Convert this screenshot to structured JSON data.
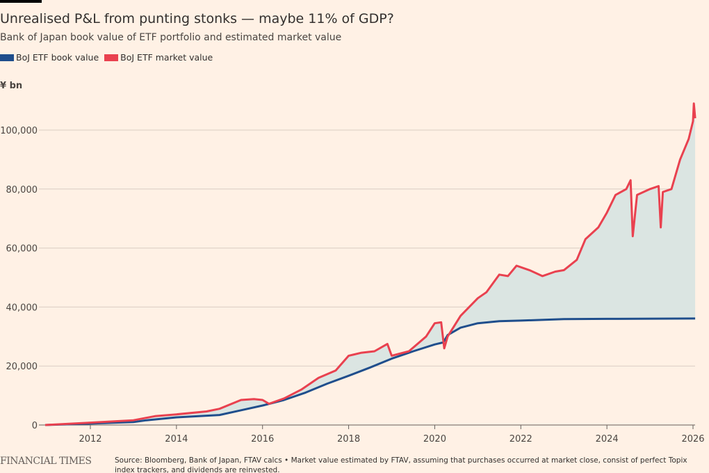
{
  "chart_data": {
    "type": "area",
    "title": "Unrealised P&L from punting stonks — maybe 11% of GDP?",
    "subtitle": "Bank of Japan book value of ETF portfolio and estimated market value",
    "ylabel": "¥ bn",
    "ylim": [
      0,
      110000
    ],
    "xlim": [
      2010.95,
      2026.1
    ],
    "yticks": [
      0,
      20000,
      40000,
      60000,
      80000,
      100000
    ],
    "ytick_labels": [
      "0",
      "20,000",
      "40,000",
      "60,000",
      "80,000",
      "100,000"
    ],
    "xticks": [
      2012,
      2014,
      2016,
      2018,
      2020,
      2022,
      2024,
      2026
    ],
    "xtick_labels": [
      "2012",
      "2014",
      "2016",
      "2018",
      "2020",
      "2022",
      "2024",
      "2026"
    ],
    "grid": true,
    "legend_placement": "top-left",
    "series": [
      {
        "name": "BoJ ETF book value",
        "color": "#1f4e8c",
        "x": [
          2010.95,
          2012,
          2013,
          2013.3,
          2014,
          2015,
          2015.5,
          2016,
          2016.5,
          2017,
          2017.5,
          2018,
          2018.5,
          2019,
          2019.5,
          2020,
          2020.2,
          2020.3,
          2020.6,
          2021,
          2021.5,
          2022,
          2023,
          2024,
          2026.05
        ],
        "values": [
          0,
          500,
          1000,
          1600,
          2600,
          3400,
          5000,
          6600,
          8500,
          11000,
          14000,
          16700,
          19500,
          22500,
          25000,
          27300,
          28000,
          30500,
          33000,
          34500,
          35200,
          35400,
          35900,
          36000,
          36100
        ]
      },
      {
        "name": "BoJ ETF market value",
        "color": "#e9414f",
        "x": [
          2010.95,
          2012,
          2013,
          2013.5,
          2014,
          2014.7,
          2015,
          2015.5,
          2015.8,
          2016,
          2016.15,
          2016.5,
          2016.9,
          2017.3,
          2017.7,
          2018,
          2018.3,
          2018.6,
          2018.9,
          2019,
          2019.4,
          2019.8,
          2020,
          2020.15,
          2020.22,
          2020.3,
          2020.6,
          2021,
          2021.2,
          2021.5,
          2021.7,
          2021.9,
          2022.2,
          2022.5,
          2022.8,
          2023,
          2023.3,
          2023.5,
          2023.8,
          2024,
          2024.2,
          2024.45,
          2024.55,
          2024.6,
          2024.7,
          2025,
          2025.2,
          2025.25,
          2025.3,
          2025.5,
          2025.7,
          2025.9,
          2026,
          2026.02,
          2026.05
        ],
        "values": [
          0,
          800,
          1600,
          3000,
          3600,
          4600,
          5500,
          8500,
          8800,
          8500,
          7200,
          9000,
          12000,
          16000,
          18500,
          23500,
          24500,
          25000,
          27500,
          23500,
          25000,
          30000,
          34500,
          34800,
          26000,
          30000,
          37000,
          43000,
          45000,
          51000,
          50500,
          54000,
          52500,
          50500,
          52000,
          52500,
          56000,
          63000,
          67000,
          72000,
          78000,
          80000,
          83000,
          64000,
          78000,
          80000,
          81000,
          67000,
          79000,
          80000,
          90000,
          97000,
          103000,
          109000,
          104000
        ]
      }
    ],
    "source": "Source: Bloomberg, Bank of Japan, FTAV calcs • Market value estimated by FTAV, assuming that purchases occurred at market close, consist of perfect Topix index trackers, and dividends are reinvested.",
    "brand": "FINANCIAL TIMES"
  }
}
